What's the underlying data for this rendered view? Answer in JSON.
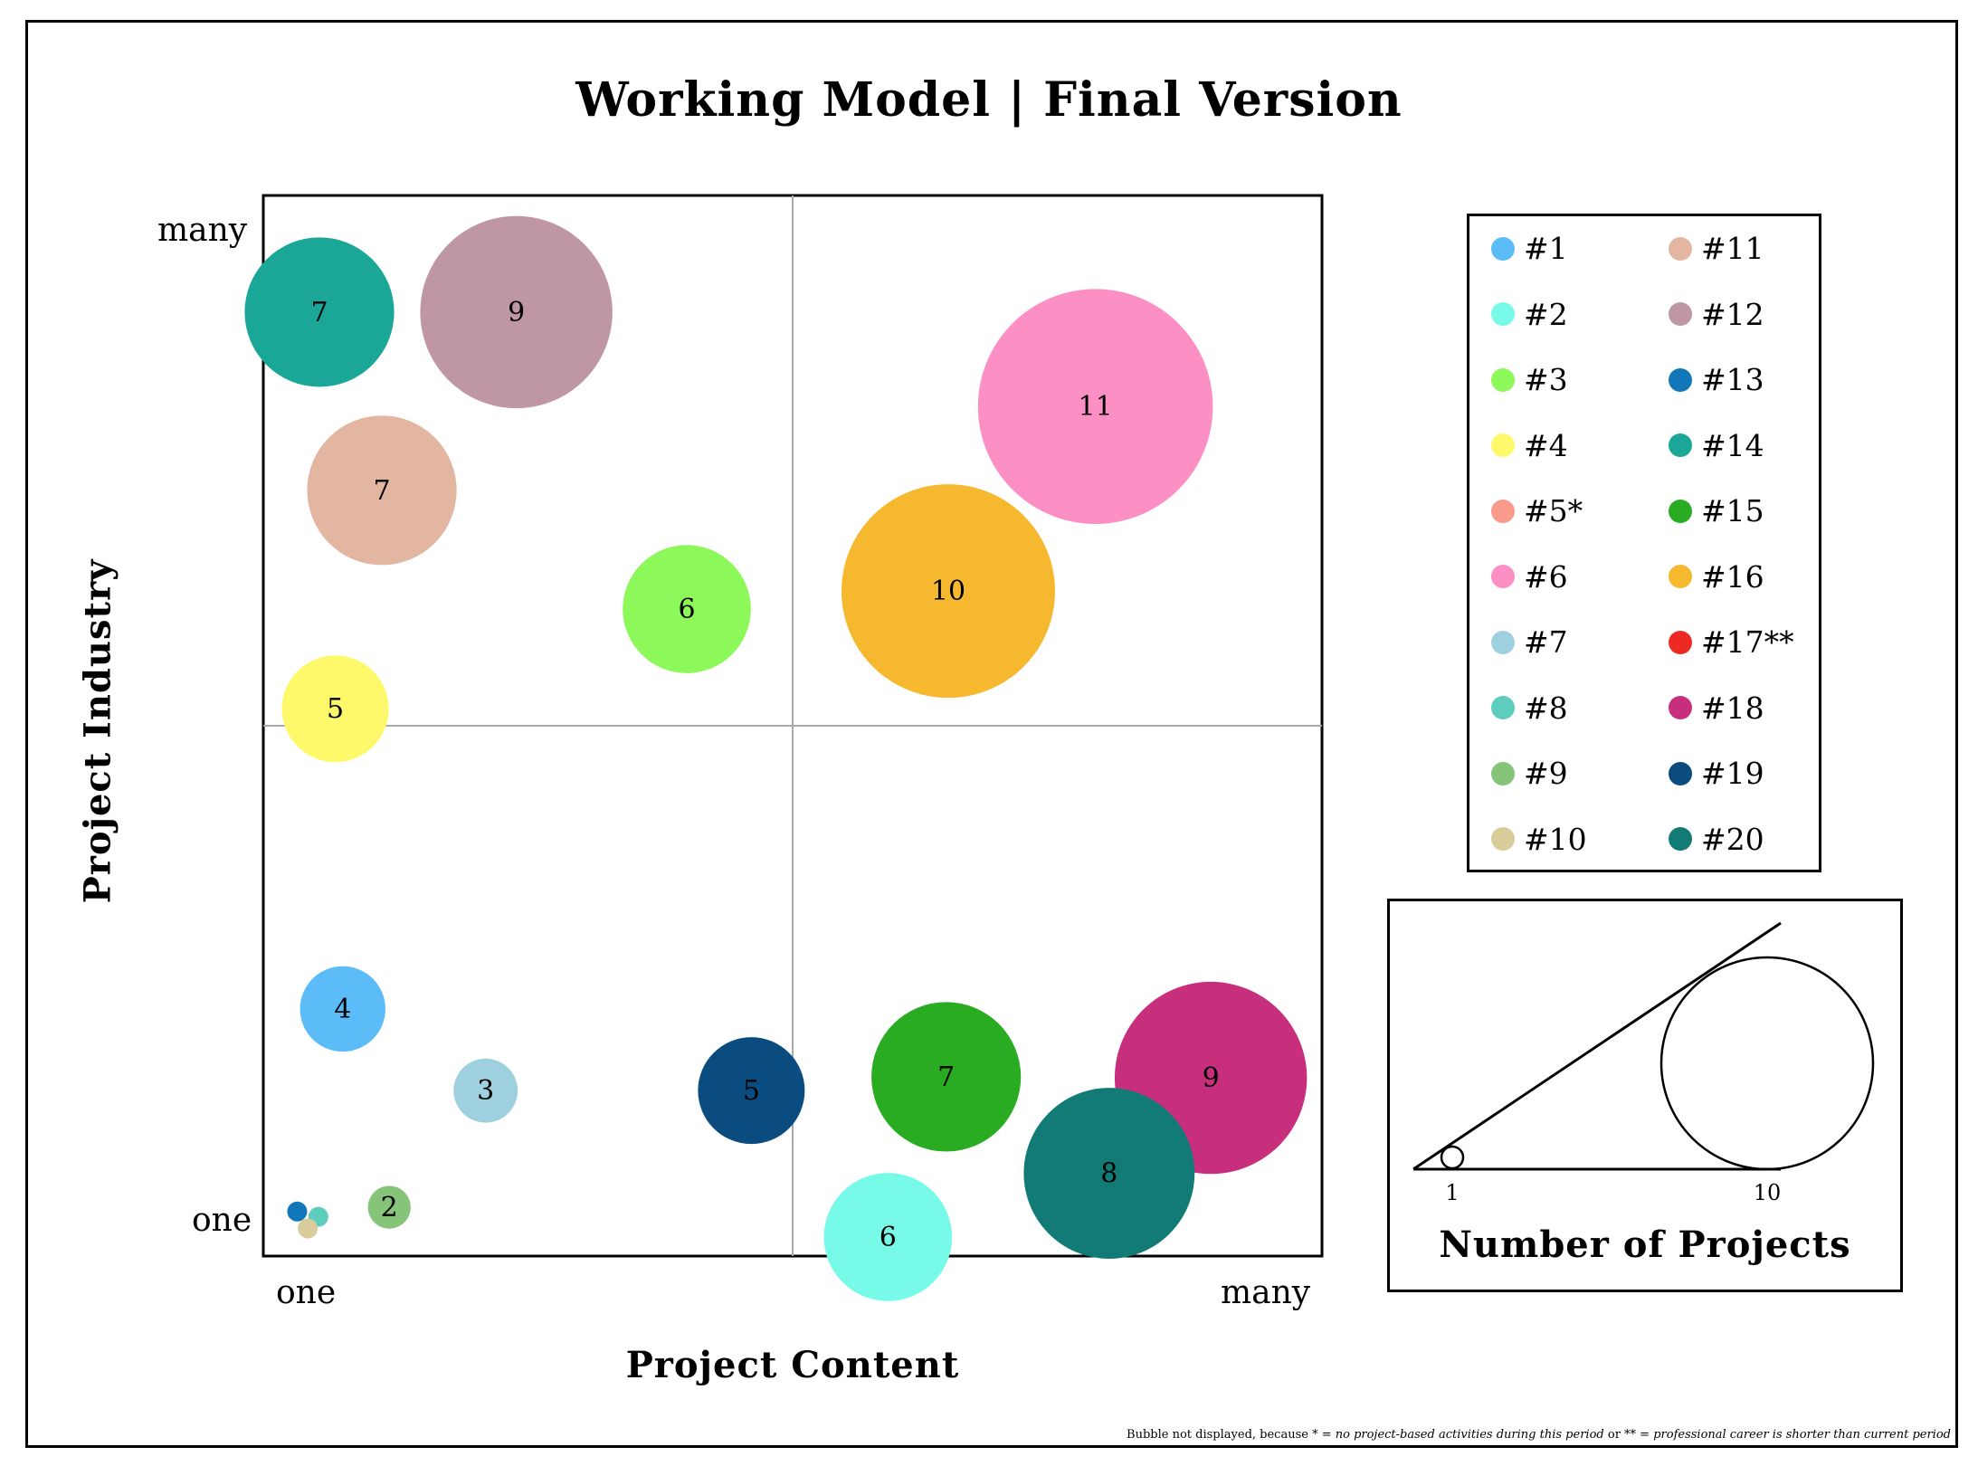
{
  "title": "Working Model | Final Version",
  "axes": {
    "xlabel": "Project Content",
    "ylabel": "Project Industry",
    "x_low": "one",
    "x_high": "many",
    "y_low": "one",
    "y_high": "many"
  },
  "chart_data": {
    "type": "scatter",
    "title": "Working Model | Final Version",
    "xlabel": "Project Content",
    "ylabel": "Project Industry",
    "xlim": [
      0,
      100
    ],
    "ylim": [
      0,
      100
    ],
    "grid": "quadrant lines at x=50 and y=50",
    "legend_position": "right",
    "size_measure": "Number of Projects",
    "points": [
      {
        "label": "#1",
        "x": 7.5,
        "y": 23.3,
        "size": 4,
        "color": "#5bbcf7"
      },
      {
        "label": "#2",
        "x": 59.0,
        "y": 1.8,
        "size": 6,
        "color": "#78fae8"
      },
      {
        "label": "#3",
        "x": 40.0,
        "y": 61.0,
        "size": 6,
        "color": "#8cf859"
      },
      {
        "label": "#4",
        "x": 6.8,
        "y": 51.6,
        "size": 5,
        "color": "#fdf96b"
      },
      {
        "label": "#6",
        "x": 78.6,
        "y": 80.1,
        "size": 11,
        "color": "#fc8fc4"
      },
      {
        "label": "#7",
        "x": 21.0,
        "y": 15.6,
        "size": 3,
        "color": "#9ed0df"
      },
      {
        "label": "#8",
        "x": 5.2,
        "y": 3.7,
        "size": 1,
        "color": "#5fcdbd"
      },
      {
        "label": "#9",
        "x": 11.9,
        "y": 4.6,
        "size": 2,
        "color": "#86c47a"
      },
      {
        "label": "#10",
        "x": 4.2,
        "y": 2.6,
        "size": 1,
        "color": "#d8cc9a"
      },
      {
        "label": "#11",
        "x": 11.2,
        "y": 72.2,
        "size": 7,
        "color": "#e3b6a2"
      },
      {
        "label": "#12",
        "x": 23.9,
        "y": 89.0,
        "size": 9,
        "color": "#bf97a4"
      },
      {
        "label": "#13",
        "x": 3.2,
        "y": 4.2,
        "size": 1,
        "color": "#1177b9"
      },
      {
        "label": "#14",
        "x": 5.3,
        "y": 89.0,
        "size": 7,
        "color": "#1aa798"
      },
      {
        "label": "#15",
        "x": 64.5,
        "y": 16.9,
        "size": 7,
        "color": "#2aac22"
      },
      {
        "label": "#16",
        "x": 64.7,
        "y": 62.7,
        "size": 10,
        "color": "#f6b82f"
      },
      {
        "label": "#18",
        "x": 89.5,
        "y": 16.8,
        "size": 9,
        "color": "#c72f7c"
      },
      {
        "label": "#19",
        "x": 46.1,
        "y": 15.6,
        "size": 5,
        "color": "#0a4c80"
      },
      {
        "label": "#20",
        "x": 79.9,
        "y": 7.8,
        "size": 8,
        "color": "#127b75"
      }
    ]
  },
  "legend": {
    "left": [
      {
        "label": "#1",
        "color": "#5bbcf7"
      },
      {
        "label": "#2",
        "color": "#78fae8"
      },
      {
        "label": "#3",
        "color": "#8cf859"
      },
      {
        "label": "#4",
        "color": "#fdf96b"
      },
      {
        "label": "#5*",
        "color": "#f99a8b"
      },
      {
        "label": "#6",
        "color": "#fc8fc4"
      },
      {
        "label": "#7",
        "color": "#9ed0df"
      },
      {
        "label": "#8",
        "color": "#5fcdbd"
      },
      {
        "label": "#9",
        "color": "#86c47a"
      },
      {
        "label": "#10",
        "color": "#d8cc9a"
      }
    ],
    "right": [
      {
        "label": "#11",
        "color": "#e3b6a2"
      },
      {
        "label": "#12",
        "color": "#bf97a4"
      },
      {
        "label": "#13",
        "color": "#1177b9"
      },
      {
        "label": "#14",
        "color": "#1aa798"
      },
      {
        "label": "#15",
        "color": "#2aac22"
      },
      {
        "label": "#16",
        "color": "#f6b82f"
      },
      {
        "label": "#17**",
        "color": "#ec2a23"
      },
      {
        "label": "#18",
        "color": "#c72f7c"
      },
      {
        "label": "#19",
        "color": "#0a4c80"
      },
      {
        "label": "#20",
        "color": "#127b75"
      }
    ]
  },
  "size_legend": {
    "title": "Number of Projects",
    "small_label": "1",
    "large_label": "10"
  },
  "footnote": {
    "prefix": "Bubble not displayed, because * = ",
    "reason1": "no project-based activities during this period",
    "middle": " or ** = ",
    "reason2": "professional career is shorter than current period"
  }
}
